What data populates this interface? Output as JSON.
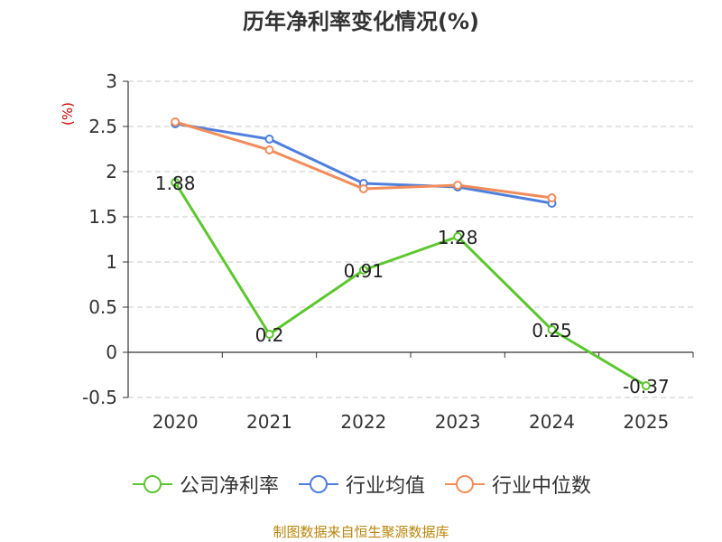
{
  "chart_data": {
    "type": "line",
    "title": "历年净利率变化情况(%)",
    "ylabel": "(%)",
    "xlabel": "",
    "categories": [
      "2020",
      "2021",
      "2022",
      "2023",
      "2024",
      "2025"
    ],
    "ylim": [
      -0.5,
      3
    ],
    "yticks": [
      3,
      2.5,
      2,
      1.5,
      1,
      0.5,
      0,
      -0.5
    ],
    "ytick_labels": [
      "3",
      "2.5",
      "2",
      "1.5",
      "1",
      "0.5",
      "0",
      "-0.5"
    ],
    "grid": true,
    "legend_position": "bottom",
    "series": [
      {
        "name": "公司净利率",
        "color": "#5cc72e",
        "values": [
          1.88,
          0.2,
          0.91,
          1.28,
          0.25,
          -0.37
        ],
        "data_labels": [
          "1.88",
          "0.2",
          "0.91",
          "1.28",
          "0.25",
          "-0.37"
        ]
      },
      {
        "name": "行业均值",
        "color": "#4f7fdc",
        "values": [
          2.53,
          2.36,
          1.87,
          1.83,
          1.65,
          null
        ]
      },
      {
        "name": "行业中位数",
        "color": "#f28c5a",
        "values": [
          2.55,
          2.24,
          1.81,
          1.85,
          1.71,
          null
        ]
      }
    ]
  },
  "source": "制图数据来自恒生聚源数据库"
}
